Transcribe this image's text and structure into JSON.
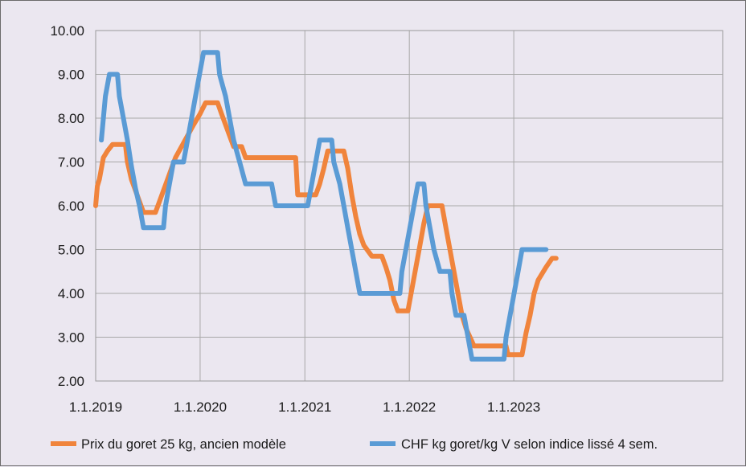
{
  "chart_data": {
    "type": "line",
    "title": "",
    "xlabel": "",
    "ylabel": "",
    "ylim": [
      2.0,
      10.0
    ],
    "y_ticks": [
      "2.00",
      "3.00",
      "4.00",
      "5.00",
      "6.00",
      "7.00",
      "8.00",
      "9.00",
      "10.00"
    ],
    "x_ticks": [
      "1.1.2019",
      "1.1.2020",
      "1.1.2021",
      "1.1.2022",
      "1.1.2023"
    ],
    "x_tick_dates": [
      "2019-01-01",
      "2020-01-01",
      "2021-01-01",
      "2022-01-01",
      "2023-01-01"
    ],
    "xlim": [
      "2019-01-01",
      "2024-12-31"
    ],
    "grid": true,
    "legend_position": "bottom",
    "series": [
      {
        "name": "Prix du goret 25 kg, ancien modèle",
        "color": "#f0843c",
        "points": [
          [
            "2019-01-01",
            6.0
          ],
          [
            "2019-01-07",
            6.45
          ],
          [
            "2019-01-14",
            6.6
          ],
          [
            "2019-01-21",
            6.85
          ],
          [
            "2019-01-28",
            7.1
          ],
          [
            "2019-02-11",
            7.25
          ],
          [
            "2019-03-01",
            7.4
          ],
          [
            "2019-04-15",
            7.4
          ],
          [
            "2019-04-22",
            7.0
          ],
          [
            "2019-05-06",
            6.6
          ],
          [
            "2019-05-20",
            6.35
          ],
          [
            "2019-06-03",
            6.1
          ],
          [
            "2019-06-17",
            5.85
          ],
          [
            "2019-07-29",
            5.85
          ],
          [
            "2019-08-12",
            6.1
          ],
          [
            "2019-08-26",
            6.35
          ],
          [
            "2019-09-09",
            6.6
          ],
          [
            "2019-09-23",
            6.85
          ],
          [
            "2019-10-07",
            7.1
          ],
          [
            "2019-10-28",
            7.35
          ],
          [
            "2019-11-18",
            7.6
          ],
          [
            "2019-12-09",
            7.85
          ],
          [
            "2020-01-01",
            8.1
          ],
          [
            "2020-01-20",
            8.35
          ],
          [
            "2020-03-02",
            8.35
          ],
          [
            "2020-03-16",
            8.1
          ],
          [
            "2020-03-30",
            7.85
          ],
          [
            "2020-04-13",
            7.6
          ],
          [
            "2020-04-27",
            7.35
          ],
          [
            "2020-05-25",
            7.35
          ],
          [
            "2020-06-08",
            7.1
          ],
          [
            "2020-11-30",
            7.1
          ],
          [
            "2020-12-07",
            6.25
          ],
          [
            "2021-02-08",
            6.25
          ],
          [
            "2021-02-22",
            6.5
          ],
          [
            "2021-03-08",
            6.85
          ],
          [
            "2021-03-22",
            7.25
          ],
          [
            "2021-05-17",
            7.25
          ],
          [
            "2021-05-31",
            6.85
          ],
          [
            "2021-06-14",
            6.25
          ],
          [
            "2021-06-28",
            5.75
          ],
          [
            "2021-07-12",
            5.35
          ],
          [
            "2021-07-26",
            5.1
          ],
          [
            "2021-08-23",
            4.85
          ],
          [
            "2021-09-27",
            4.85
          ],
          [
            "2021-10-11",
            4.6
          ],
          [
            "2021-10-25",
            4.3
          ],
          [
            "2021-11-08",
            3.85
          ],
          [
            "2021-11-22",
            3.6
          ],
          [
            "2021-12-27",
            3.6
          ],
          [
            "2022-01-10",
            4.1
          ],
          [
            "2022-01-24",
            4.6
          ],
          [
            "2022-02-07",
            5.1
          ],
          [
            "2022-02-21",
            5.6
          ],
          [
            "2022-03-07",
            6.0
          ],
          [
            "2022-04-25",
            6.0
          ],
          [
            "2022-05-09",
            5.5
          ],
          [
            "2022-05-23",
            5.0
          ],
          [
            "2022-06-06",
            4.5
          ],
          [
            "2022-06-20",
            4.0
          ],
          [
            "2022-07-04",
            3.5
          ],
          [
            "2022-07-18",
            3.2
          ],
          [
            "2022-08-01",
            3.0
          ],
          [
            "2022-08-15",
            2.8
          ],
          [
            "2022-12-05",
            2.8
          ],
          [
            "2022-12-12",
            2.6
          ],
          [
            "2023-01-30",
            2.6
          ],
          [
            "2023-02-13",
            3.1
          ],
          [
            "2023-02-27",
            3.5
          ],
          [
            "2023-03-13",
            4.0
          ],
          [
            "2023-03-27",
            4.3
          ],
          [
            "2023-04-24",
            4.6
          ],
          [
            "2023-05-15",
            4.8
          ],
          [
            "2023-05-29",
            4.8
          ]
        ]
      },
      {
        "name": "CHF kg goret/kg V selon indice lissé 4 sem.",
        "color": "#5a9bd5",
        "points": [
          [
            "2019-01-21",
            7.5
          ],
          [
            "2019-02-04",
            8.5
          ],
          [
            "2019-02-18",
            9.0
          ],
          [
            "2019-03-18",
            9.0
          ],
          [
            "2019-03-25",
            8.5
          ],
          [
            "2019-04-08",
            8.0
          ],
          [
            "2019-04-22",
            7.5
          ],
          [
            "2019-05-06",
            6.9
          ],
          [
            "2019-05-20",
            6.4
          ],
          [
            "2019-06-03",
            6.0
          ],
          [
            "2019-06-17",
            5.5
          ],
          [
            "2019-08-26",
            5.5
          ],
          [
            "2019-09-02",
            6.0
          ],
          [
            "2019-09-16",
            6.5
          ],
          [
            "2019-09-30",
            7.0
          ],
          [
            "2019-11-04",
            7.0
          ],
          [
            "2019-11-18",
            7.5
          ],
          [
            "2019-12-02",
            8.0
          ],
          [
            "2019-12-16",
            8.5
          ],
          [
            "2019-12-30",
            9.0
          ],
          [
            "2020-01-13",
            9.5
          ],
          [
            "2020-03-02",
            9.5
          ],
          [
            "2020-03-09",
            9.0
          ],
          [
            "2020-03-30",
            8.5
          ],
          [
            "2020-04-13",
            8.0
          ],
          [
            "2020-04-27",
            7.5
          ],
          [
            "2020-05-18",
            7.0
          ],
          [
            "2020-06-08",
            6.5
          ],
          [
            "2020-09-07",
            6.5
          ],
          [
            "2020-09-21",
            6.0
          ],
          [
            "2020-12-28",
            6.0
          ],
          [
            "2021-01-11",
            6.0
          ],
          [
            "2021-01-25",
            6.5
          ],
          [
            "2021-02-08",
            7.0
          ],
          [
            "2021-02-22",
            7.5
          ],
          [
            "2021-04-05",
            7.5
          ],
          [
            "2021-04-12",
            7.0
          ],
          [
            "2021-05-03",
            6.5
          ],
          [
            "2021-05-17",
            6.0
          ],
          [
            "2021-05-31",
            5.5
          ],
          [
            "2021-06-14",
            5.0
          ],
          [
            "2021-06-28",
            4.5
          ],
          [
            "2021-07-12",
            4.0
          ],
          [
            "2021-11-29",
            4.0
          ],
          [
            "2021-12-06",
            4.5
          ],
          [
            "2021-12-20",
            5.0
          ],
          [
            "2022-01-03",
            5.5
          ],
          [
            "2022-01-17",
            6.0
          ],
          [
            "2022-01-31",
            6.5
          ],
          [
            "2022-02-21",
            6.5
          ],
          [
            "2022-02-28",
            6.0
          ],
          [
            "2022-03-14",
            5.5
          ],
          [
            "2022-03-28",
            5.0
          ],
          [
            "2022-04-18",
            4.5
          ],
          [
            "2022-05-23",
            4.5
          ],
          [
            "2022-05-30",
            4.0
          ],
          [
            "2022-06-13",
            3.5
          ],
          [
            "2022-07-11",
            3.5
          ],
          [
            "2022-07-25",
            3.0
          ],
          [
            "2022-08-08",
            2.5
          ],
          [
            "2022-11-28",
            2.5
          ],
          [
            "2022-12-05",
            3.0
          ],
          [
            "2022-12-19",
            3.5
          ],
          [
            "2023-01-02",
            4.0
          ],
          [
            "2023-01-16",
            4.5
          ],
          [
            "2023-01-30",
            5.0
          ],
          [
            "2023-04-24",
            5.0
          ]
        ]
      }
    ]
  }
}
